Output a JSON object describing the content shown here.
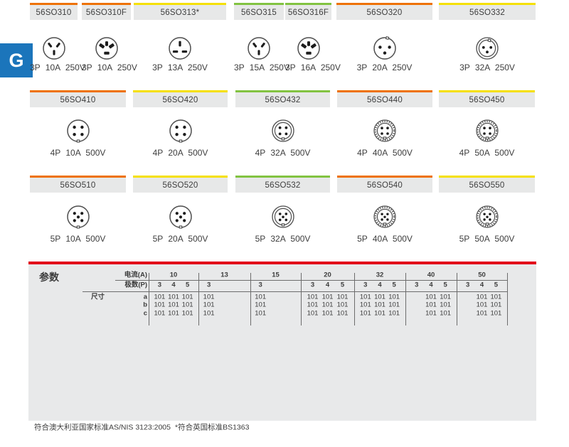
{
  "section_tab": {
    "label": "G"
  },
  "colors": {
    "orange": "#ee7203",
    "yellow": "#f5e003",
    "green": "#82c341",
    "red_line": "#e2001a",
    "tab_blue": "#1b75bb"
  },
  "product_rows": [
    {
      "products": [
        {
          "code": "56SO310",
          "bar_color": "orange",
          "icon": "au-flat-3pin",
          "spec": "3P 10A 250V"
        },
        {
          "code": "56SO310F",
          "bar_color": "orange",
          "icon": "au-flat-3pin-wide",
          "spec": "3P 10A 250V"
        },
        {
          "code": "56SO313*",
          "bar_color": "yellow",
          "icon": "uk-3pin",
          "spec": "3P 13A 250V"
        },
        {
          "code": "56SO315",
          "bar_color": "green",
          "icon": "au-flat-3pin",
          "spec": "3P 15A 250V"
        },
        {
          "code": "56SO316F",
          "bar_color": "green",
          "icon": "au-flat-3pin-wide",
          "spec": "3P 16A 250V"
        },
        {
          "code": "56SO320",
          "bar_color": "orange",
          "icon": "round-3pin",
          "spec": "3P 20A 250V"
        },
        {
          "code": "56SO332",
          "bar_color": "yellow",
          "icon": "round-3pin-ring",
          "spec": "3P 32A 250V"
        }
      ]
    },
    {
      "products": [
        {
          "code": "56SO410",
          "bar_color": "orange",
          "icon": "round-4pin",
          "spec": "4P 10A 500V"
        },
        {
          "code": "56SO420",
          "bar_color": "yellow",
          "icon": "round-4pin",
          "spec": "4P 20A 500V"
        },
        {
          "code": "56SO432",
          "bar_color": "green",
          "icon": "round-4pin-ring",
          "spec": "4P 32A 500V"
        },
        {
          "code": "56SO440",
          "bar_color": "orange",
          "icon": "round-4pin-threaded",
          "spec": "4P 40A 500V"
        },
        {
          "code": "56SO450",
          "bar_color": "yellow",
          "icon": "round-4pin-threaded",
          "spec": "4P 50A 500V"
        }
      ]
    },
    {
      "products": [
        {
          "code": "56SO510",
          "bar_color": "orange",
          "icon": "round-5pin",
          "spec": "5P 10A 500V"
        },
        {
          "code": "56SO520",
          "bar_color": "yellow",
          "icon": "round-5pin",
          "spec": "5P 20A 500V"
        },
        {
          "code": "56SO532",
          "bar_color": "green",
          "icon": "round-5pin-ring",
          "spec": "5P 32A 500V"
        },
        {
          "code": "56SO540",
          "bar_color": "orange",
          "icon": "round-5pin-threaded",
          "spec": "5P 40A 500V"
        },
        {
          "code": "56SO550",
          "bar_color": "yellow",
          "icon": "round-5pin-threaded",
          "spec": "5P 50A 500V"
        }
      ]
    }
  ],
  "param_table": {
    "section_label": "参数",
    "current_header": "电流(A)",
    "poles_header": "极数(P)",
    "dims_header": "尺寸",
    "dim_row_labels": [
      "a",
      "b",
      "c"
    ],
    "groups": [
      {
        "current": "10",
        "poles": [
          "3",
          "4",
          "5"
        ],
        "dims": {
          "a": [
            "101",
            "101",
            "101"
          ],
          "b": [
            "101",
            "101",
            "101"
          ],
          "c": [
            "101",
            "101",
            "101"
          ]
        }
      },
      {
        "current": "13",
        "poles": [
          "3"
        ],
        "dims": {
          "a": [
            "101"
          ],
          "b": [
            "101"
          ],
          "c": [
            "101"
          ]
        }
      },
      {
        "current": "15",
        "poles": [
          "3"
        ],
        "dims": {
          "a": [
            "101"
          ],
          "b": [
            "101"
          ],
          "c": [
            "101"
          ]
        }
      },
      {
        "current": "20",
        "poles": [
          "3",
          "4",
          "5"
        ],
        "dims": {
          "a": [
            "101",
            "101",
            "101"
          ],
          "b": [
            "101",
            "101",
            "101"
          ],
          "c": [
            "101",
            "101",
            "101"
          ]
        }
      },
      {
        "current": "32",
        "poles": [
          "3",
          "4",
          "5"
        ],
        "dims": {
          "a": [
            "101",
            "101",
            "101"
          ],
          "b": [
            "101",
            "101",
            "101"
          ],
          "c": [
            "101",
            "101",
            "101"
          ]
        }
      },
      {
        "current": "40",
        "poles": [
          "3",
          "4",
          "5"
        ],
        "dims": {
          "a": [
            "",
            "101",
            "101"
          ],
          "b": [
            "",
            "101",
            "101"
          ],
          "c": [
            "",
            "101",
            "101"
          ]
        }
      },
      {
        "current": "50",
        "poles": [
          "3",
          "4",
          "5"
        ],
        "dims": {
          "a": [
            "",
            "101",
            "101"
          ],
          "b": [
            "",
            "101",
            "101"
          ],
          "c": [
            "",
            "101",
            "101"
          ]
        }
      }
    ]
  },
  "footnotes": {
    "au": "符合澳大利亚国家标准AS/NIS 3123:2005",
    "uk": "*符合英国标准BS1363"
  }
}
